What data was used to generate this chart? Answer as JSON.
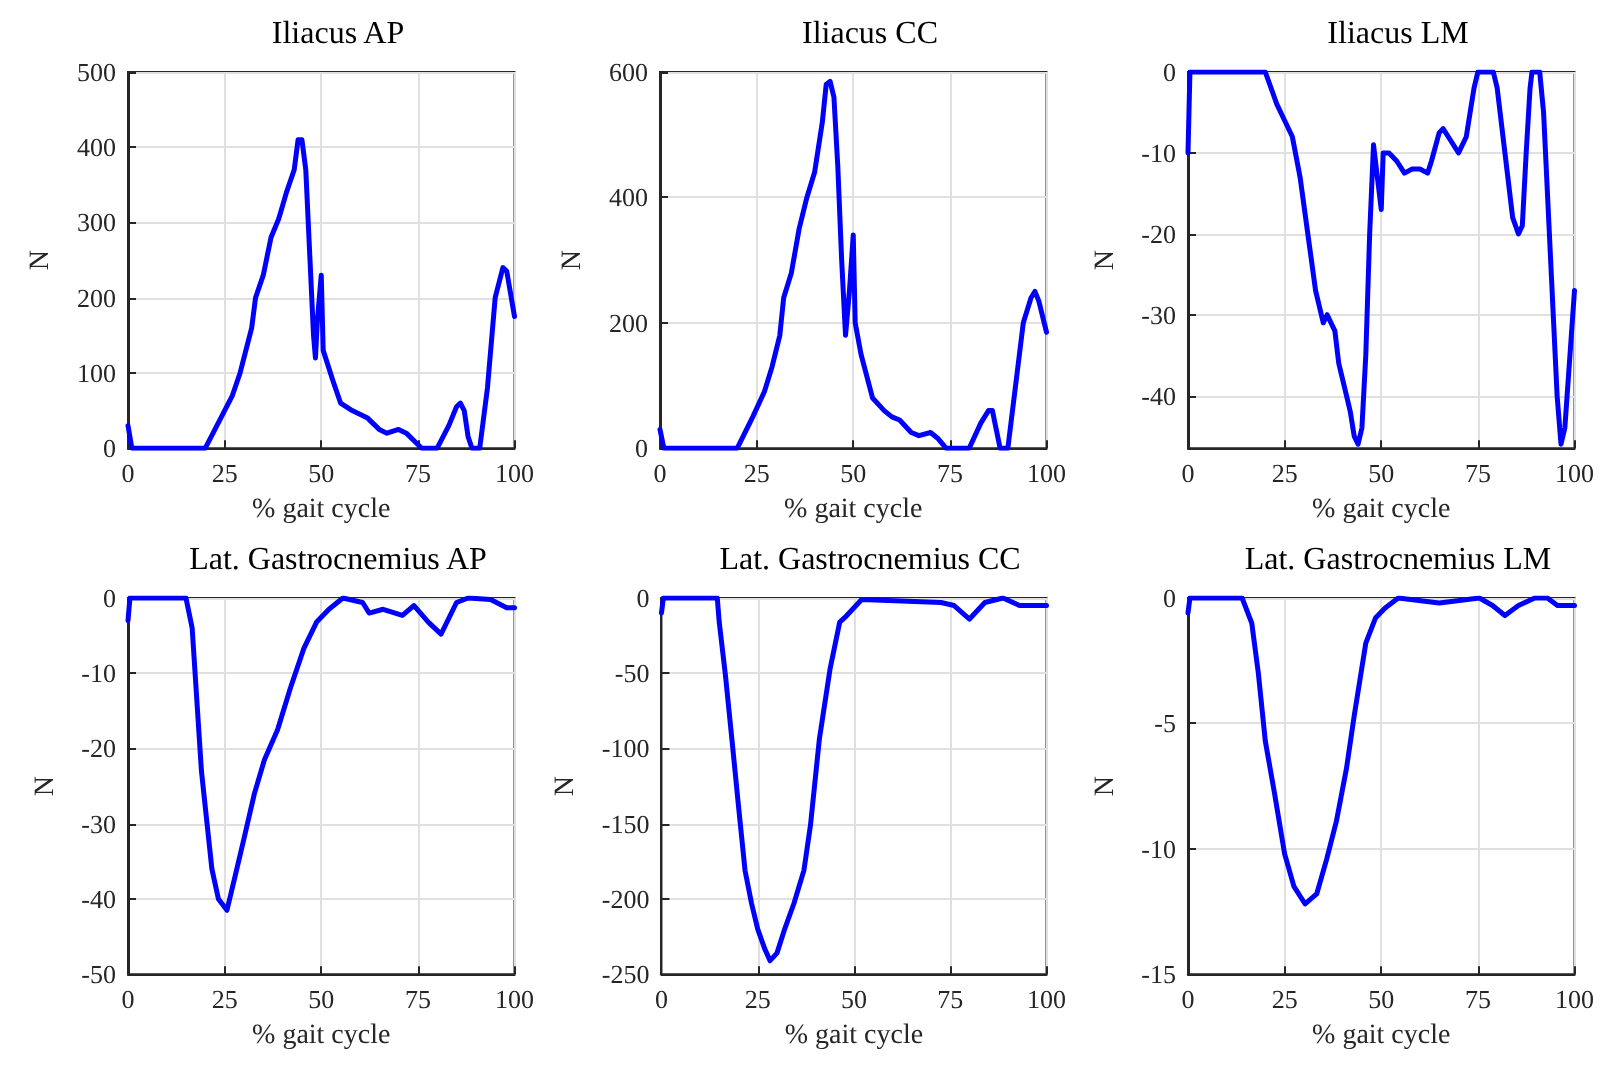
{
  "chart_data": [
    {
      "type": "line",
      "title": "Iliacus AP",
      "xlabel": "% gait cycle",
      "ylabel": "N",
      "color": "#0000ff",
      "marker": "none",
      "grid": true,
      "xlim": [
        0,
        100
      ],
      "xticks": [
        0,
        25,
        50,
        75,
        100
      ],
      "ylim": [
        0,
        500
      ],
      "yticks": [
        0,
        100,
        200,
        300,
        400,
        500
      ],
      "x": [
        0,
        1,
        20,
        24,
        27,
        29,
        32,
        33,
        35,
        37,
        39,
        41,
        43,
        44,
        45,
        46,
        47,
        48,
        48.5,
        49,
        50,
        50.5,
        53,
        55,
        58,
        60,
        62,
        65,
        67,
        70,
        72,
        75,
        76,
        80,
        83,
        85,
        86,
        87,
        88,
        89,
        91,
        93,
        95,
        97,
        98,
        100
      ],
      "values": [
        30,
        0,
        0,
        40,
        70,
        100,
        160,
        200,
        230,
        280,
        305,
        340,
        370,
        410,
        410,
        370,
        260,
        150,
        120,
        170,
        230,
        130,
        90,
        60,
        50,
        45,
        40,
        25,
        20,
        25,
        20,
        5,
        0,
        0,
        30,
        55,
        60,
        50,
        15,
        0,
        0,
        80,
        200,
        240,
        235,
        175
      ]
    },
    {
      "type": "line",
      "title": "Iliacus CC",
      "xlabel": "% gait cycle",
      "ylabel": "N",
      "color": "#0000ff",
      "marker": "none",
      "grid": true,
      "xlim": [
        0,
        100
      ],
      "xticks": [
        0,
        25,
        50,
        75,
        100
      ],
      "ylim": [
        0,
        600
      ],
      "yticks": [
        0,
        200,
        400,
        600
      ],
      "x": [
        0,
        1,
        20,
        24,
        27,
        29,
        31,
        32,
        34,
        36,
        38,
        40,
        42,
        43,
        44,
        45,
        46,
        47,
        48,
        49,
        50,
        50.5,
        52,
        55,
        58,
        60,
        62,
        65,
        67,
        70,
        72,
        74,
        80,
        83,
        85,
        86,
        87,
        88,
        90,
        92,
        94,
        96,
        97,
        98,
        100
      ],
      "values": [
        30,
        0,
        0,
        50,
        90,
        130,
        180,
        240,
        280,
        350,
        400,
        440,
        520,
        580,
        585,
        560,
        450,
        300,
        180,
        250,
        340,
        200,
        150,
        80,
        60,
        50,
        45,
        25,
        20,
        25,
        15,
        0,
        0,
        40,
        60,
        60,
        30,
        0,
        0,
        100,
        200,
        240,
        250,
        235,
        185
      ]
    },
    {
      "type": "line",
      "title": "Iliacus LM",
      "xlabel": "% gait cycle",
      "ylabel": "N",
      "color": "#0000ff",
      "marker": "none",
      "grid": true,
      "xlim": [
        0,
        100
      ],
      "xticks": [
        0,
        25,
        50,
        75,
        100
      ],
      "ylim": [
        -46.5,
        0
      ],
      "yticks": [
        -40,
        -30,
        -20,
        -10,
        0
      ],
      "x": [
        0,
        0.5,
        20,
        23,
        25,
        27,
        29,
        31,
        33,
        34,
        35,
        36,
        37,
        38,
        39,
        40,
        42,
        43,
        44,
        45,
        46,
        47,
        48,
        49,
        50,
        50.5,
        52,
        54,
        56,
        58,
        60,
        62,
        63,
        65,
        66,
        68,
        70,
        72,
        74,
        75,
        79,
        80,
        82,
        84,
        85.5,
        86.5,
        87.5,
        88.5,
        89,
        91,
        92,
        94,
        95.5,
        96.5,
        97.5,
        100
      ],
      "values": [
        -10,
        0,
        0,
        -4,
        -6,
        -8,
        -13,
        -20,
        -27,
        -29,
        -31,
        -30,
        -31,
        -32,
        -36,
        -38,
        -42,
        -45,
        -46,
        -44,
        -35,
        -20,
        -9,
        -13,
        -17,
        -10,
        -10,
        -11,
        -12.5,
        -12,
        -12,
        -12.5,
        -11,
        -7.5,
        -7,
        -8.5,
        -10,
        -8,
        -2,
        0,
        0,
        -2,
        -10,
        -18,
        -20,
        -19,
        -10,
        -2,
        0,
        0,
        -5,
        -25,
        -40,
        -46,
        -44,
        -27
      ]
    },
    {
      "type": "line",
      "title": "Lat. Gastrocnemius AP",
      "xlabel": "% gait cycle",
      "ylabel": "N",
      "color": "#0000ff",
      "marker": "none",
      "grid": true,
      "xlim": [
        0,
        100
      ],
      "xticks": [
        0,
        25,
        50,
        75,
        100
      ],
      "ylim": [
        -50,
        0
      ],
      "yticks": [
        -50,
        -40,
        -30,
        -20,
        -10,
        0
      ],
      "x": [
        0,
        0.5,
        15,
        16.6,
        19,
        21.7,
        23.4,
        25.6,
        27.7,
        30,
        32.7,
        35.3,
        38.7,
        42,
        45.5,
        48.8,
        52,
        55.6,
        60.7,
        62.4,
        66,
        71,
        74,
        77.7,
        81,
        85,
        88,
        93.8,
        98,
        100
      ],
      "values": [
        -3,
        0,
        0,
        -4,
        -23,
        -36,
        -40,
        -41.5,
        -37,
        -32,
        -26,
        -21.5,
        -17.5,
        -12,
        -6.7,
        -3.2,
        -1.5,
        0,
        -0.6,
        -2,
        -1.5,
        -2.3,
        -1,
        -3.2,
        -4.8,
        -0.6,
        0,
        -0.2,
        -1.3,
        -1.3
      ]
    },
    {
      "type": "line",
      "title": "Lat. Gastrocnemius CC",
      "xlabel": "% gait cycle",
      "ylabel": "N",
      "color": "#0000ff",
      "marker": "none",
      "grid": true,
      "xlim": [
        0,
        100
      ],
      "xticks": [
        0,
        25,
        50,
        75,
        100
      ],
      "ylim": [
        -250,
        0
      ],
      "yticks": [
        -250,
        -200,
        -150,
        -100,
        -50,
        0
      ],
      "x": [
        0,
        0.5,
        14.5,
        15,
        16.6,
        18.3,
        20,
        21.7,
        23.4,
        25,
        26.8,
        28.2,
        30,
        32,
        34.4,
        37,
        38.7,
        41,
        43.8,
        46.3,
        48,
        52,
        72.6,
        76,
        80,
        84,
        88.7,
        93,
        100
      ],
      "values": [
        -10,
        0,
        0,
        -16,
        -51,
        -94,
        -138,
        -181,
        -203,
        -220,
        -233,
        -241,
        -236,
        -220,
        -203,
        -181,
        -151,
        -94,
        -47,
        -16,
        -12,
        -1,
        -3,
        -5,
        -14,
        -3,
        0,
        -5,
        -5
      ]
    },
    {
      "type": "line",
      "title": "Lat. Gastrocnemius LM",
      "xlabel": "% gait cycle",
      "ylabel": "N",
      "color": "#0000ff",
      "marker": "none",
      "grid": true,
      "xlim": [
        0,
        100
      ],
      "xticks": [
        0,
        25,
        50,
        75,
        100
      ],
      "ylim": [
        -15,
        0
      ],
      "yticks": [
        -15,
        -10,
        -5,
        0
      ],
      "x": [
        0,
        0.5,
        14,
        16.5,
        18.2,
        20,
        22.4,
        25,
        27.4,
        30.3,
        33.3,
        35.9,
        38.4,
        41,
        43,
        46,
        48.5,
        51,
        54.4,
        65,
        75.4,
        78.8,
        82,
        85.5,
        89.7,
        93,
        95.6,
        100
      ],
      "values": [
        -0.6,
        0,
        0,
        -1,
        -3,
        -5.7,
        -7.8,
        -10.2,
        -11.5,
        -12.2,
        -11.8,
        -10.4,
        -8.9,
        -6.8,
        -4.7,
        -1.8,
        -0.8,
        -0.4,
        0,
        -0.2,
        0,
        -0.3,
        -0.7,
        -0.3,
        0,
        0,
        -0.3,
        -0.3
      ]
    }
  ]
}
